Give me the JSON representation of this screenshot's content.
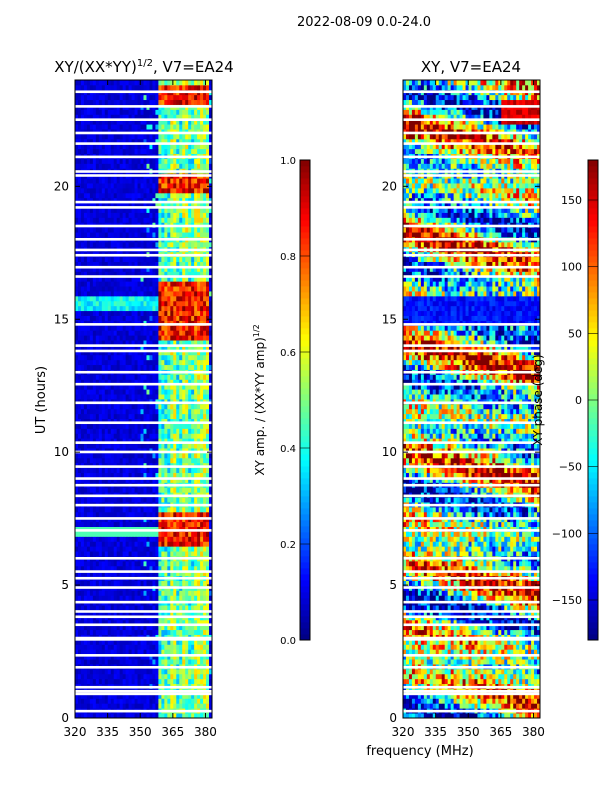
{
  "suptitle": "2022-08-09 0.0-24.0",
  "shared_xlabel": "frequency (MHz)",
  "chart_data": [
    {
      "type": "heatmap",
      "id": "left",
      "title_main": "XY/(XX*YY)",
      "title_exp": "1/2",
      "title_tail": ", V7=EA24",
      "ylabel": "UT (hours)",
      "xlim": [
        320,
        383
      ],
      "ylim": [
        0,
        24
      ],
      "xticks": [
        320,
        335,
        350,
        365,
        380
      ],
      "yticks": [
        0,
        5,
        10,
        15,
        20
      ],
      "colorbar": {
        "label_main": "XY amp. / (XX*YY amp)",
        "label_exp": "1/2",
        "vmin": 0.0,
        "vmax": 1.0,
        "ticks": [
          "0.0",
          "0.2",
          "0.4",
          "0.6",
          "0.8",
          "1.0"
        ],
        "tick_values": [
          0.0,
          0.2,
          0.4,
          0.6,
          0.8,
          1.0
        ]
      },
      "features": {
        "background_value": 0.05,
        "active_band_mhz": [
          358,
          382
        ],
        "channel_peaks_mhz": [
          365,
          371,
          377,
          380
        ],
        "hot_bands_hours": [
          [
            6.4,
            7.8
          ],
          [
            14.3,
            16.4
          ],
          [
            19.8,
            20.4
          ],
          [
            23.1,
            23.9
          ]
        ]
      }
    },
    {
      "type": "heatmap",
      "id": "right",
      "title": "XY, V7=EA24",
      "xlim": [
        320,
        383
      ],
      "ylim": [
        0,
        24
      ],
      "xticks": [
        320,
        335,
        350,
        365,
        380
      ],
      "yticks": [
        0,
        5,
        10,
        15,
        20
      ],
      "colorbar": {
        "label": "XY phase (deg)",
        "vmin": -180,
        "vmax": 180,
        "ticks": [
          "150",
          "100",
          "50",
          "0",
          "−50",
          "−100",
          "−150"
        ],
        "tick_values": [
          150,
          100,
          50,
          0,
          -50,
          -100,
          -150
        ]
      },
      "features": {
        "dominant_phase_deg": [
          -150,
          120
        ],
        "stripe_structure": "horizontal"
      }
    }
  ],
  "flagged_gaps_hours": [
    0.25,
    0.9,
    1.0,
    1.15,
    1.9,
    2.35,
    2.95,
    3.0,
    3.5,
    3.8,
    4.0,
    4.35,
    4.9,
    5.25,
    5.5,
    6.0,
    7.05,
    7.5,
    8.0,
    8.35,
    8.75,
    9.0,
    9.45,
    10.0,
    10.35,
    11.1,
    11.85,
    12.55,
    13.0,
    13.8,
    14.0,
    14.8,
    16.6,
    16.95,
    17.4,
    17.6,
    18.0,
    18.5,
    19.2,
    19.4,
    20.4,
    20.55,
    21.1,
    21.6,
    22.0,
    22.5,
    23.0,
    23.55
  ]
}
